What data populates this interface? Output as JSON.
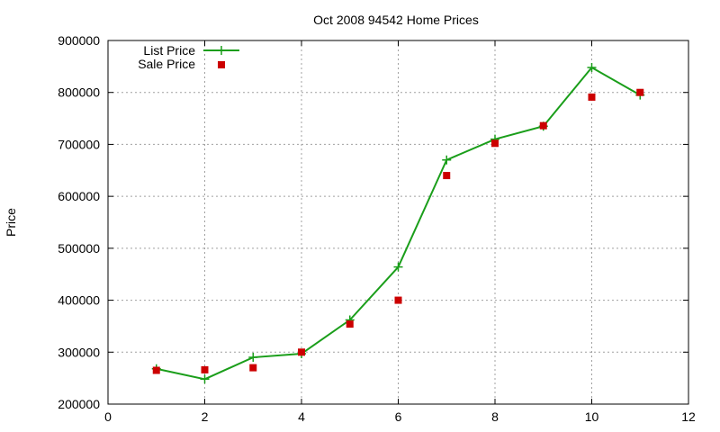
{
  "chart_data": {
    "type": "line",
    "title": "Oct 2008 94542 Home Prices",
    "xlabel": "",
    "ylabel": "Price",
    "xlim": [
      0,
      12
    ],
    "ylim": [
      200000,
      900000
    ],
    "xticks": [
      0,
      2,
      4,
      6,
      8,
      10,
      12
    ],
    "yticks": [
      200000,
      300000,
      400000,
      500000,
      600000,
      700000,
      800000,
      900000
    ],
    "grid": true,
    "legend_position": "top-left",
    "series": [
      {
        "name": "List Price",
        "style": "line-with-plus-markers",
        "color": "#1a9e1a",
        "x": [
          1,
          2,
          3,
          4,
          5,
          6,
          7,
          8,
          9,
          10,
          11
        ],
        "y": [
          268000,
          248000,
          290000,
          297000,
          362000,
          464000,
          670000,
          710000,
          735000,
          848000,
          795000
        ]
      },
      {
        "name": "Sale Price",
        "style": "square-markers",
        "color": "#cc0000",
        "x": [
          1,
          2,
          3,
          4,
          5,
          6,
          7,
          8,
          9,
          10,
          11
        ],
        "y": [
          265000,
          266000,
          270000,
          300000,
          354000,
          400000,
          640000,
          702000,
          736000,
          791000,
          800000
        ]
      }
    ]
  }
}
